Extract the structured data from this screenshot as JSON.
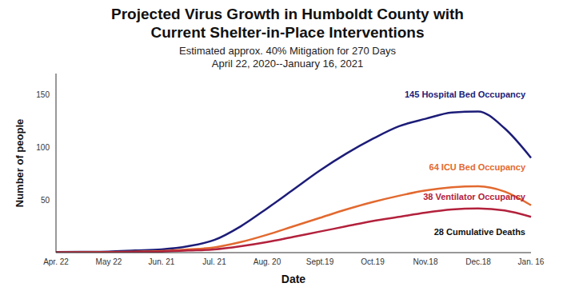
{
  "chart_data": {
    "type": "line",
    "title": "Projected Virus Growth in Humboldt County with Current Shelter-in-Place Interventions",
    "subtitle": [
      "Estimated approx. 40% Mitigation for 270 Days",
      "April 22, 2020--January 16, 2021"
    ],
    "x_label": "Date",
    "y_label": "Number of people",
    "categories": [
      "Apr. 22",
      null,
      "May 22",
      null,
      "Jun. 21",
      null,
      "Jul. 21",
      null,
      "Aug. 20",
      null,
      "Sept.19",
      null,
      "Oct.19",
      null,
      "Nov.18",
      null,
      "Dec.18",
      null,
      "Jan. 16"
    ],
    "series": [
      {
        "name": "145 Hospital Bed Occupancy",
        "color": "#1c1c78",
        "values": [
          0.5,
          0.7,
          1,
          2,
          3,
          6,
          12,
          25,
          42,
          60,
          78,
          94,
          108,
          120,
          127,
          133,
          134,
          118,
          90
        ]
      },
      {
        "name": "64 ICU Bed Occupancy",
        "color": "#e2692f",
        "values": [
          0.2,
          0.3,
          0.5,
          1,
          1.5,
          3,
          5,
          10,
          17,
          25,
          33,
          41,
          48,
          54,
          59,
          62,
          63,
          58,
          45
        ]
      },
      {
        "name": "38 Ventilator Occupancy",
        "color": "#b3213c",
        "values": [
          0.1,
          0.2,
          0.3,
          0.5,
          1,
          2,
          3,
          6,
          10,
          15,
          20,
          25,
          30,
          34,
          38,
          41,
          42,
          40,
          34
        ]
      }
    ],
    "annotations": [
      "28 Cumulative Deaths"
    ],
    "ylim": [
      0,
      170
    ],
    "yticks": [
      50,
      100,
      150
    ],
    "grid": false,
    "legend": false
  }
}
